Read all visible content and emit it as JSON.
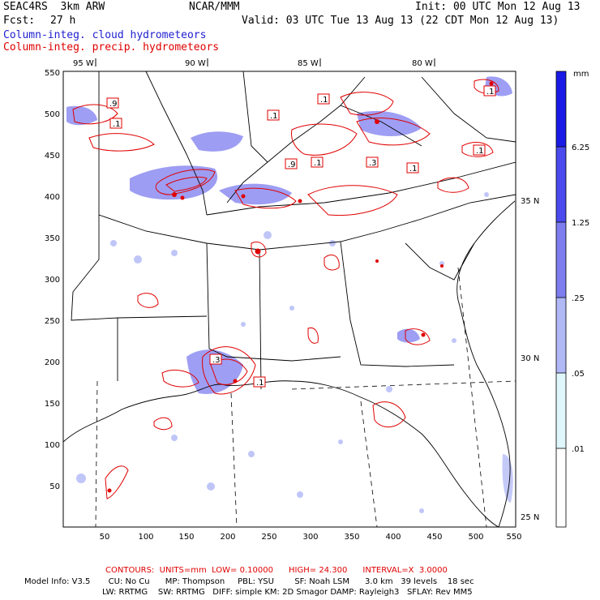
{
  "header": {
    "model": "SEAC4RS  3km ARW",
    "org": "NCAR/MMM",
    "init": "Init: 00 UTC Mon 12 Aug 13",
    "fcst_label": "Fcst:",
    "fcst_value": "27 h",
    "valid": "Valid: 03 UTC Tue 13 Aug 13 (22 CDT Mon 12 Aug 13)",
    "field1": "Column-integ. cloud hydrometeors",
    "field2": "Column-integ. precip. hydrometeors"
  },
  "axes": {
    "lon_labels": [
      "95 W",
      "90 W",
      "85 W",
      "80 W"
    ],
    "lat_labels": [
      "35 N",
      "30 N",
      "25 N"
    ],
    "x_ticks": [
      "50",
      "100",
      "150",
      "200",
      "250",
      "300",
      "350",
      "400",
      "450",
      "500",
      "550"
    ],
    "y_ticks": [
      "550",
      "500",
      "450",
      "400",
      "350",
      "300",
      "250",
      "200",
      "150",
      "100",
      "50"
    ]
  },
  "colorbar": {
    "unit": "mm",
    "labels": [
      "6.25",
      "1.25",
      ".25",
      ".05",
      ".01"
    ],
    "colors": [
      "#1a1ae6",
      "#4a4aee",
      "#7d7df0",
      "#b0b8f6",
      "#dff6fb",
      "#ffffff"
    ]
  },
  "contour_labels": [
    ".9",
    ".1",
    ".1",
    ".1",
    ".9",
    ".1",
    ".3",
    ".1",
    ".1",
    ".1",
    ".3",
    ".1"
  ],
  "footer": {
    "contours": "CONTOURS:  UNITS=mm  LOW= 0.10000      HIGH= 24.300      INTERVAL=X  3.0000",
    "line1": "Model Info: V3.5       CU: No Cu      MP: Thompson     PBL: YSU        SF: Noah LSM      3.0 km   39 levels    18 sec",
    "line2": "LW: RRTMG    SW: RRTMG   DIFF: simple KM: 2D Smagor DAMP: Rayleigh3   SFLAY: Rev MM5"
  },
  "colors": {
    "cloud": "#6a6af0",
    "precip": "#e00000",
    "text_blue": "#2020d0"
  }
}
